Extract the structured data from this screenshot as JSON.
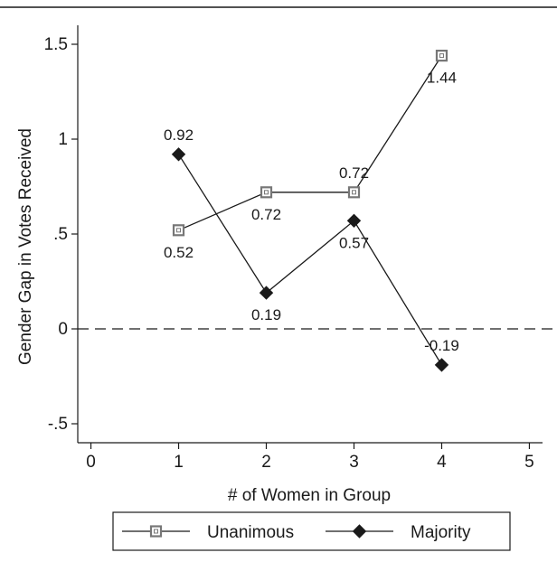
{
  "chart_data": {
    "type": "line",
    "title": "",
    "xlabel": "# of Women in Group",
    "ylabel": "Gender Gap in Votes Received",
    "xlim": [
      -0.15,
      5.15
    ],
    "ylim": [
      -0.6,
      1.6
    ],
    "x_ticks": [
      0,
      1,
      2,
      3,
      4,
      5
    ],
    "x_tick_labels": [
      "0",
      "1",
      "2",
      "3",
      "4",
      "5"
    ],
    "y_ticks": [
      -0.5,
      0,
      0.5,
      1,
      1.5
    ],
    "y_tick_labels": [
      "-.5",
      "0",
      ".5",
      "1",
      "1.5"
    ],
    "reference_line": {
      "y": 0,
      "style": "dashed"
    },
    "grid": false,
    "legend_position": "bottom",
    "series": [
      {
        "name": "Unanimous",
        "marker": "hollow-square",
        "color": "#777777",
        "x": [
          1,
          2,
          3,
          4
        ],
        "values": [
          0.52,
          0.72,
          0.72,
          1.44
        ],
        "labels": [
          "0.52",
          "0.72",
          "0.72",
          "1.44"
        ],
        "label_pos": [
          "below",
          "below",
          "above",
          "below"
        ]
      },
      {
        "name": "Majority",
        "marker": "filled-diamond",
        "color": "#1a1a1a",
        "x": [
          1,
          2,
          3,
          4
        ],
        "values": [
          0.92,
          0.19,
          0.57,
          -0.19
        ],
        "labels": [
          "0.92",
          "0.19",
          "0.57",
          "-0.19"
        ],
        "label_pos": [
          "above",
          "below",
          "below",
          "above"
        ]
      }
    ]
  }
}
